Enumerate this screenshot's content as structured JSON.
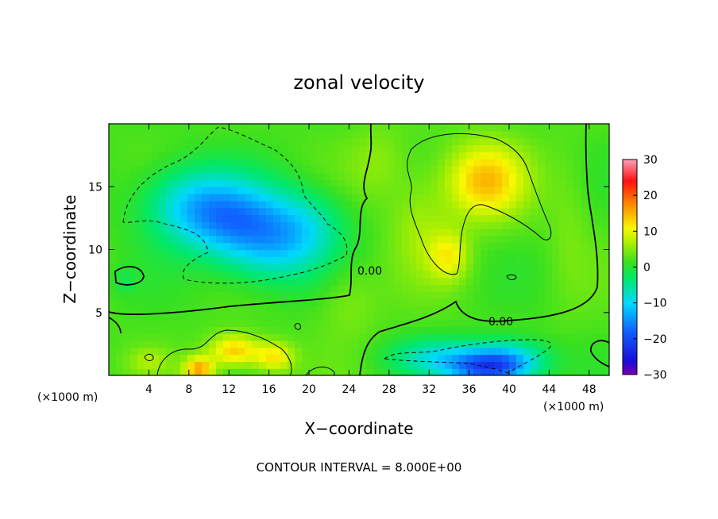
{
  "chart_data": {
    "type": "heatmap",
    "title": "zonal velocity",
    "xlabel": "X−coordinate",
    "ylabel": "Z−coordinate",
    "x_unit_left": "(×1000 m)",
    "x_unit_right": "(×1000 m)",
    "xlim": [
      0,
      50
    ],
    "ylim": [
      0,
      20
    ],
    "x_ticks": [
      4,
      8,
      12,
      16,
      20,
      24,
      28,
      32,
      36,
      40,
      44,
      48
    ],
    "y_ticks": [
      5,
      10,
      15
    ],
    "colorbar": {
      "min": -30,
      "max": 30,
      "ticks": [
        30,
        20,
        10,
        0,
        -10,
        -20,
        -30
      ],
      "tick_labels": [
        "30",
        "20",
        "10",
        "0",
        "−10",
        "−20",
        "−30"
      ]
    },
    "contour_interval_text": "CONTOUR INTERVAL = 8.000E+00",
    "contour_labels": [
      "0.00",
      "0.00"
    ],
    "features": [
      {
        "x": 12.5,
        "z": 12.5,
        "value": -14,
        "sx": 6,
        "sz": 3
      },
      {
        "x": 8,
        "z": 14,
        "value": -8,
        "sx": 5,
        "sz": 3
      },
      {
        "x": 16,
        "z": 10,
        "value": -9,
        "sx": 5,
        "sz": 3
      },
      {
        "x": 20,
        "z": 12,
        "value": -6,
        "sx": 4,
        "sz": 3
      },
      {
        "x": 38,
        "z": 0.5,
        "value": -18,
        "sx": 4,
        "sz": 1.3
      },
      {
        "x": 33,
        "z": 1.5,
        "value": -9,
        "sx": 5,
        "sz": 1.5
      },
      {
        "x": 40,
        "z": 1.5,
        "value": -10,
        "sx": 4,
        "sz": 1.5
      },
      {
        "x": 37.5,
        "z": 15.5,
        "value": 12,
        "sx": 4,
        "sz": 3
      },
      {
        "x": 34,
        "z": 9.5,
        "value": 8,
        "sx": 2,
        "sz": 2
      },
      {
        "x": 31,
        "z": 12,
        "value": 4,
        "sx": 3,
        "sz": 4
      },
      {
        "x": 12.5,
        "z": 2,
        "value": 12,
        "sx": 2.5,
        "sz": 1.3
      },
      {
        "x": 9,
        "z": 0.5,
        "value": 14,
        "sx": 1.5,
        "sz": 1
      },
      {
        "x": 16.5,
        "z": 1.5,
        "value": 10,
        "sx": 2,
        "sz": 1.2
      },
      {
        "x": 4,
        "z": 1.2,
        "value": 4,
        "sx": 2,
        "sz": 1
      },
      {
        "x": 24,
        "z": 6,
        "value": 3,
        "sx": 3,
        "sz": 3
      },
      {
        "x": 46,
        "z": 12,
        "value": 2,
        "sx": 2,
        "sz": 6
      },
      {
        "x": 1.5,
        "z": 7.5,
        "value": -3,
        "sx": 1.2,
        "sz": 1
      },
      {
        "x": 27,
        "z": 17,
        "value": 3,
        "sx": 3,
        "sz": 3
      }
    ]
  }
}
